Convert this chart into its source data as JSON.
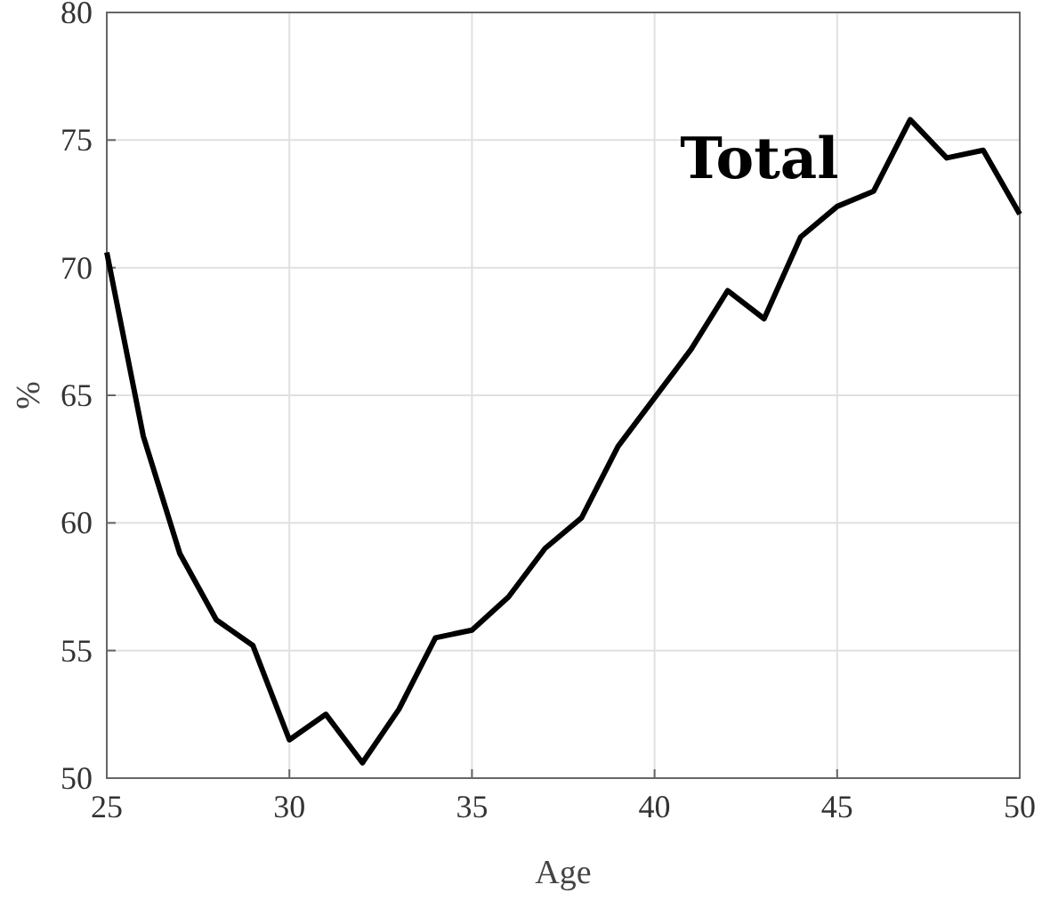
{
  "chart_data": {
    "type": "line",
    "xlabel": "Age",
    "ylabel": "%",
    "x": [
      25,
      26,
      27,
      28,
      29,
      30,
      31,
      32,
      33,
      34,
      35,
      36,
      37,
      38,
      39,
      40,
      41,
      42,
      43,
      44,
      45,
      46,
      47,
      48,
      49,
      50
    ],
    "series": [
      {
        "name": "Total",
        "color": "#000000",
        "values": [
          70.6,
          63.4,
          58.8,
          56.2,
          55.2,
          51.5,
          52.5,
          50.6,
          52.7,
          55.5,
          55.8,
          57.1,
          59.0,
          60.2,
          63.0,
          64.9,
          66.8,
          69.1,
          68.0,
          71.2,
          72.4,
          73.0,
          75.8,
          74.3,
          74.6,
          72.1
        ]
      }
    ],
    "xlim": [
      25,
      50
    ],
    "xticks": [
      25,
      30,
      35,
      40,
      45,
      50
    ],
    "ylim": [
      50,
      80
    ],
    "yticks": [
      50,
      55,
      60,
      65,
      70,
      75,
      80
    ],
    "grid": true,
    "marker": "none",
    "line_style": "solid"
  }
}
